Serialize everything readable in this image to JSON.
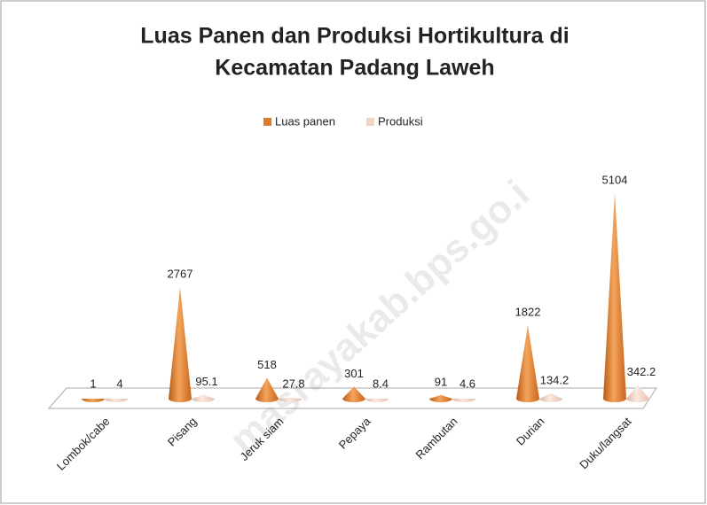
{
  "chart_data": {
    "type": "cone3d",
    "title": [
      "Luas Panen dan Produksi Hortikultura di",
      "Kecamatan Padang Laweh"
    ],
    "categories": [
      "Lombok/cabe",
      "Pisang",
      "Jeruk siam",
      "Pepaya",
      "Rambutan",
      "Durian",
      "Duku/langsat"
    ],
    "series": [
      {
        "name": "Luas panen",
        "color": "#e07b2a",
        "values": [
          1,
          2767,
          518,
          301,
          91,
          1822,
          5104
        ]
      },
      {
        "name": "Produksi",
        "color": "#f4d3c4",
        "values": [
          4,
          95.1,
          27.8,
          8.4,
          4.6,
          134.2,
          342.2
        ]
      }
    ],
    "legend": "top",
    "watermark": "masrayakab.bps.go.i"
  }
}
